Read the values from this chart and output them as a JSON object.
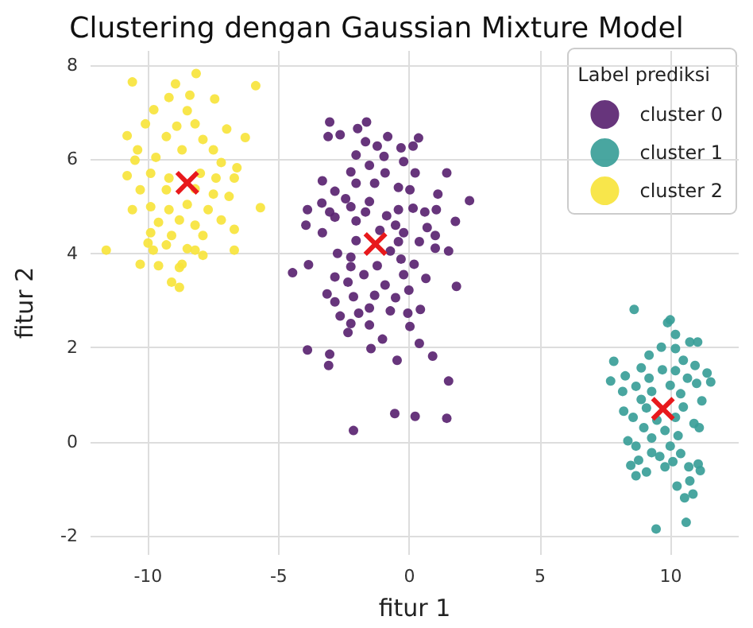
{
  "chart_data": {
    "type": "scatter",
    "title": "Clustering dengan Gaussian Mixture Model",
    "xlabel": "fitur 1",
    "ylabel": "fitur 2",
    "legend_title": "Label prediksi",
    "legend": "top right",
    "grid": true,
    "marker": "circle",
    "xlim": [
      -12.2,
      12.6
    ],
    "ylim": [
      -2.4,
      8.3
    ],
    "xticks": [
      -10,
      -5,
      0,
      5,
      10
    ],
    "yticks": [
      -2,
      0,
      2,
      4,
      6,
      8
    ],
    "series": [
      {
        "name": "cluster 0",
        "color": "#5a2471",
        "x": [
          -3.05,
          -1.64,
          -1.98,
          -3.11,
          -2.65,
          -0.83,
          0.35,
          -1.68,
          -1.23,
          -0.32,
          0.14,
          -2.04,
          -0.97,
          -1.53,
          -0.22,
          -2.24,
          -0.93,
          0.22,
          1.43,
          -3.33,
          -2.85,
          -2.04,
          -1.33,
          -0.42,
          0.02,
          1.09,
          2.3,
          -2.44,
          -1.53,
          -3.35,
          -3.9,
          -3.05,
          -2.24,
          -0.42,
          0.14,
          0.59,
          1.03,
          -2.85,
          -1.68,
          -0.87,
          -3.96,
          -2.04,
          -0.53,
          0.68,
          1.76,
          -3.33,
          -1.13,
          -0.22,
          0.99,
          -2.04,
          -0.42,
          0.38,
          0.99,
          1.5,
          -2.75,
          -0.73,
          -2.24,
          -0.32,
          -4.47,
          -3.86,
          -2.24,
          -1.23,
          0.18,
          0.63,
          -2.85,
          -1.74,
          -0.22,
          1.8,
          -2.35,
          -0.93,
          -3.15,
          -2.14,
          -1.33,
          -0.02,
          -2.85,
          -0.53,
          -1.53,
          0.42,
          -2.65,
          -1.94,
          -0.73,
          -0.06,
          -2.24,
          -1.53,
          0.02,
          -2.35,
          -1.03,
          0.38,
          -3.9,
          -1.47,
          -3.05,
          0.89,
          -0.47,
          -3.09,
          1.5,
          -0.56,
          0.22,
          1.43,
          -2.14
        ],
        "values": [
          6.79,
          6.79,
          6.65,
          6.48,
          6.52,
          6.48,
          6.45,
          6.37,
          6.28,
          6.24,
          6.28,
          6.09,
          6.06,
          5.87,
          5.95,
          5.73,
          5.71,
          5.71,
          5.71,
          5.54,
          5.32,
          5.49,
          5.49,
          5.4,
          5.35,
          5.26,
          5.12,
          5.16,
          5.1,
          5.07,
          4.93,
          4.88,
          4.99,
          4.93,
          4.96,
          4.88,
          4.93,
          4.77,
          4.88,
          4.8,
          4.6,
          4.69,
          4.6,
          4.55,
          4.68,
          4.44,
          4.49,
          4.44,
          4.38,
          4.27,
          4.25,
          4.25,
          4.11,
          4.05,
          4.0,
          4.05,
          3.92,
          3.88,
          3.59,
          3.76,
          3.72,
          3.74,
          3.77,
          3.47,
          3.5,
          3.55,
          3.55,
          3.3,
          3.39,
          3.33,
          3.14,
          3.08,
          3.11,
          3.22,
          2.97,
          3.06,
          2.84,
          2.81,
          2.67,
          2.73,
          2.78,
          2.73,
          2.51,
          2.48,
          2.45,
          2.32,
          2.18,
          2.09,
          1.95,
          1.98,
          1.86,
          1.82,
          1.73,
          1.62,
          1.29,
          0.6,
          0.54,
          0.5,
          0.24
        ]
      },
      {
        "name": "cluster 1",
        "color": "#3a9e98",
        "x": [
          8.6,
          9.98,
          9.88,
          10.18,
          10.73,
          11.03,
          9.64,
          10.18,
          9.17,
          7.82,
          10.48,
          10.93,
          8.87,
          9.68,
          10.18,
          11.39,
          8.26,
          9.17,
          10.64,
          7.7,
          11.53,
          8.67,
          9.98,
          10.99,
          8.16,
          9.27,
          10.38,
          11.19,
          8.87,
          8.2,
          9.07,
          10.48,
          8.56,
          9.47,
          10.18,
          10.89,
          11.09,
          8.97,
          9.78,
          8.36,
          9.27,
          10.28,
          8.67,
          9.98,
          9.27,
          10.38,
          8.77,
          9.58,
          10.08,
          8.47,
          11.05,
          9.07,
          9.78,
          10.69,
          8.67,
          11.13,
          10.73,
          10.24,
          10.85,
          10.53,
          9.44,
          10.59
        ],
        "values": [
          2.81,
          2.59,
          2.53,
          2.28,
          2.12,
          2.12,
          2.01,
          1.98,
          1.84,
          1.71,
          1.73,
          1.62,
          1.57,
          1.53,
          1.51,
          1.46,
          1.4,
          1.35,
          1.35,
          1.29,
          1.27,
          1.18,
          1.2,
          1.24,
          1.07,
          1.07,
          1.02,
          0.87,
          0.9,
          0.65,
          0.72,
          0.74,
          0.52,
          0.46,
          0.52,
          0.39,
          0.3,
          0.3,
          0.24,
          0.02,
          0.08,
          0.13,
          -0.09,
          -0.09,
          -0.23,
          -0.25,
          -0.39,
          -0.31,
          -0.42,
          -0.5,
          -0.47,
          -0.64,
          -0.53,
          -0.53,
          -0.72,
          -0.61,
          -0.83,
          -0.94,
          -1.11,
          -1.19,
          -1.85,
          -1.71
        ]
      },
      {
        "name": "cluster 2",
        "color": "#f7e43c",
        "x": [
          -10.6,
          -8.16,
          -8.95,
          -5.88,
          -9.2,
          -8.4,
          -7.45,
          -9.78,
          -8.5,
          -10.1,
          -10.8,
          -6.28,
          -6.99,
          -8.9,
          -8.2,
          -10.4,
          -7.5,
          -9.3,
          -7.9,
          -10.5,
          -9.7,
          -8.7,
          -7.2,
          -6.6,
          -10.8,
          -9.9,
          -9.2,
          -8.0,
          -7.4,
          -6.7,
          -10.3,
          -9.3,
          -8.2,
          -7.5,
          -6.9,
          -5.7,
          -10.6,
          -9.9,
          -9.2,
          -8.5,
          -7.7,
          -7.2,
          -9.6,
          -8.8,
          -8.2,
          -6.7,
          -9.9,
          -9.1,
          -7.9,
          -10.0,
          -9.3,
          -8.5,
          -11.6,
          -9.8,
          -8.2,
          -6.7,
          -7.9,
          -10.3,
          -9.6,
          -8.7,
          -8.8,
          -9.1,
          -8.8
        ],
        "values": [
          7.64,
          7.82,
          7.6,
          7.56,
          7.31,
          7.36,
          7.28,
          7.05,
          7.03,
          6.75,
          6.5,
          6.46,
          6.64,
          6.7,
          6.75,
          6.2,
          6.2,
          6.48,
          6.42,
          5.98,
          6.04,
          6.2,
          5.93,
          5.82,
          5.65,
          5.7,
          5.6,
          5.7,
          5.6,
          5.6,
          5.35,
          5.35,
          5.37,
          5.26,
          5.21,
          4.97,
          4.93,
          4.99,
          4.93,
          5.04,
          4.93,
          4.71,
          4.66,
          4.71,
          4.6,
          4.51,
          4.44,
          4.38,
          4.38,
          4.22,
          4.18,
          4.1,
          4.07,
          4.07,
          4.07,
          4.07,
          3.96,
          3.77,
          3.74,
          3.77,
          3.7,
          3.39,
          3.28
        ]
      },
      {
        "color": "#e8191c",
        "marker": "cross",
        "x": [
          -8.5,
          -1.3,
          9.7
        ],
        "values": [
          5.5,
          4.2,
          0.7
        ]
      }
    ]
  }
}
